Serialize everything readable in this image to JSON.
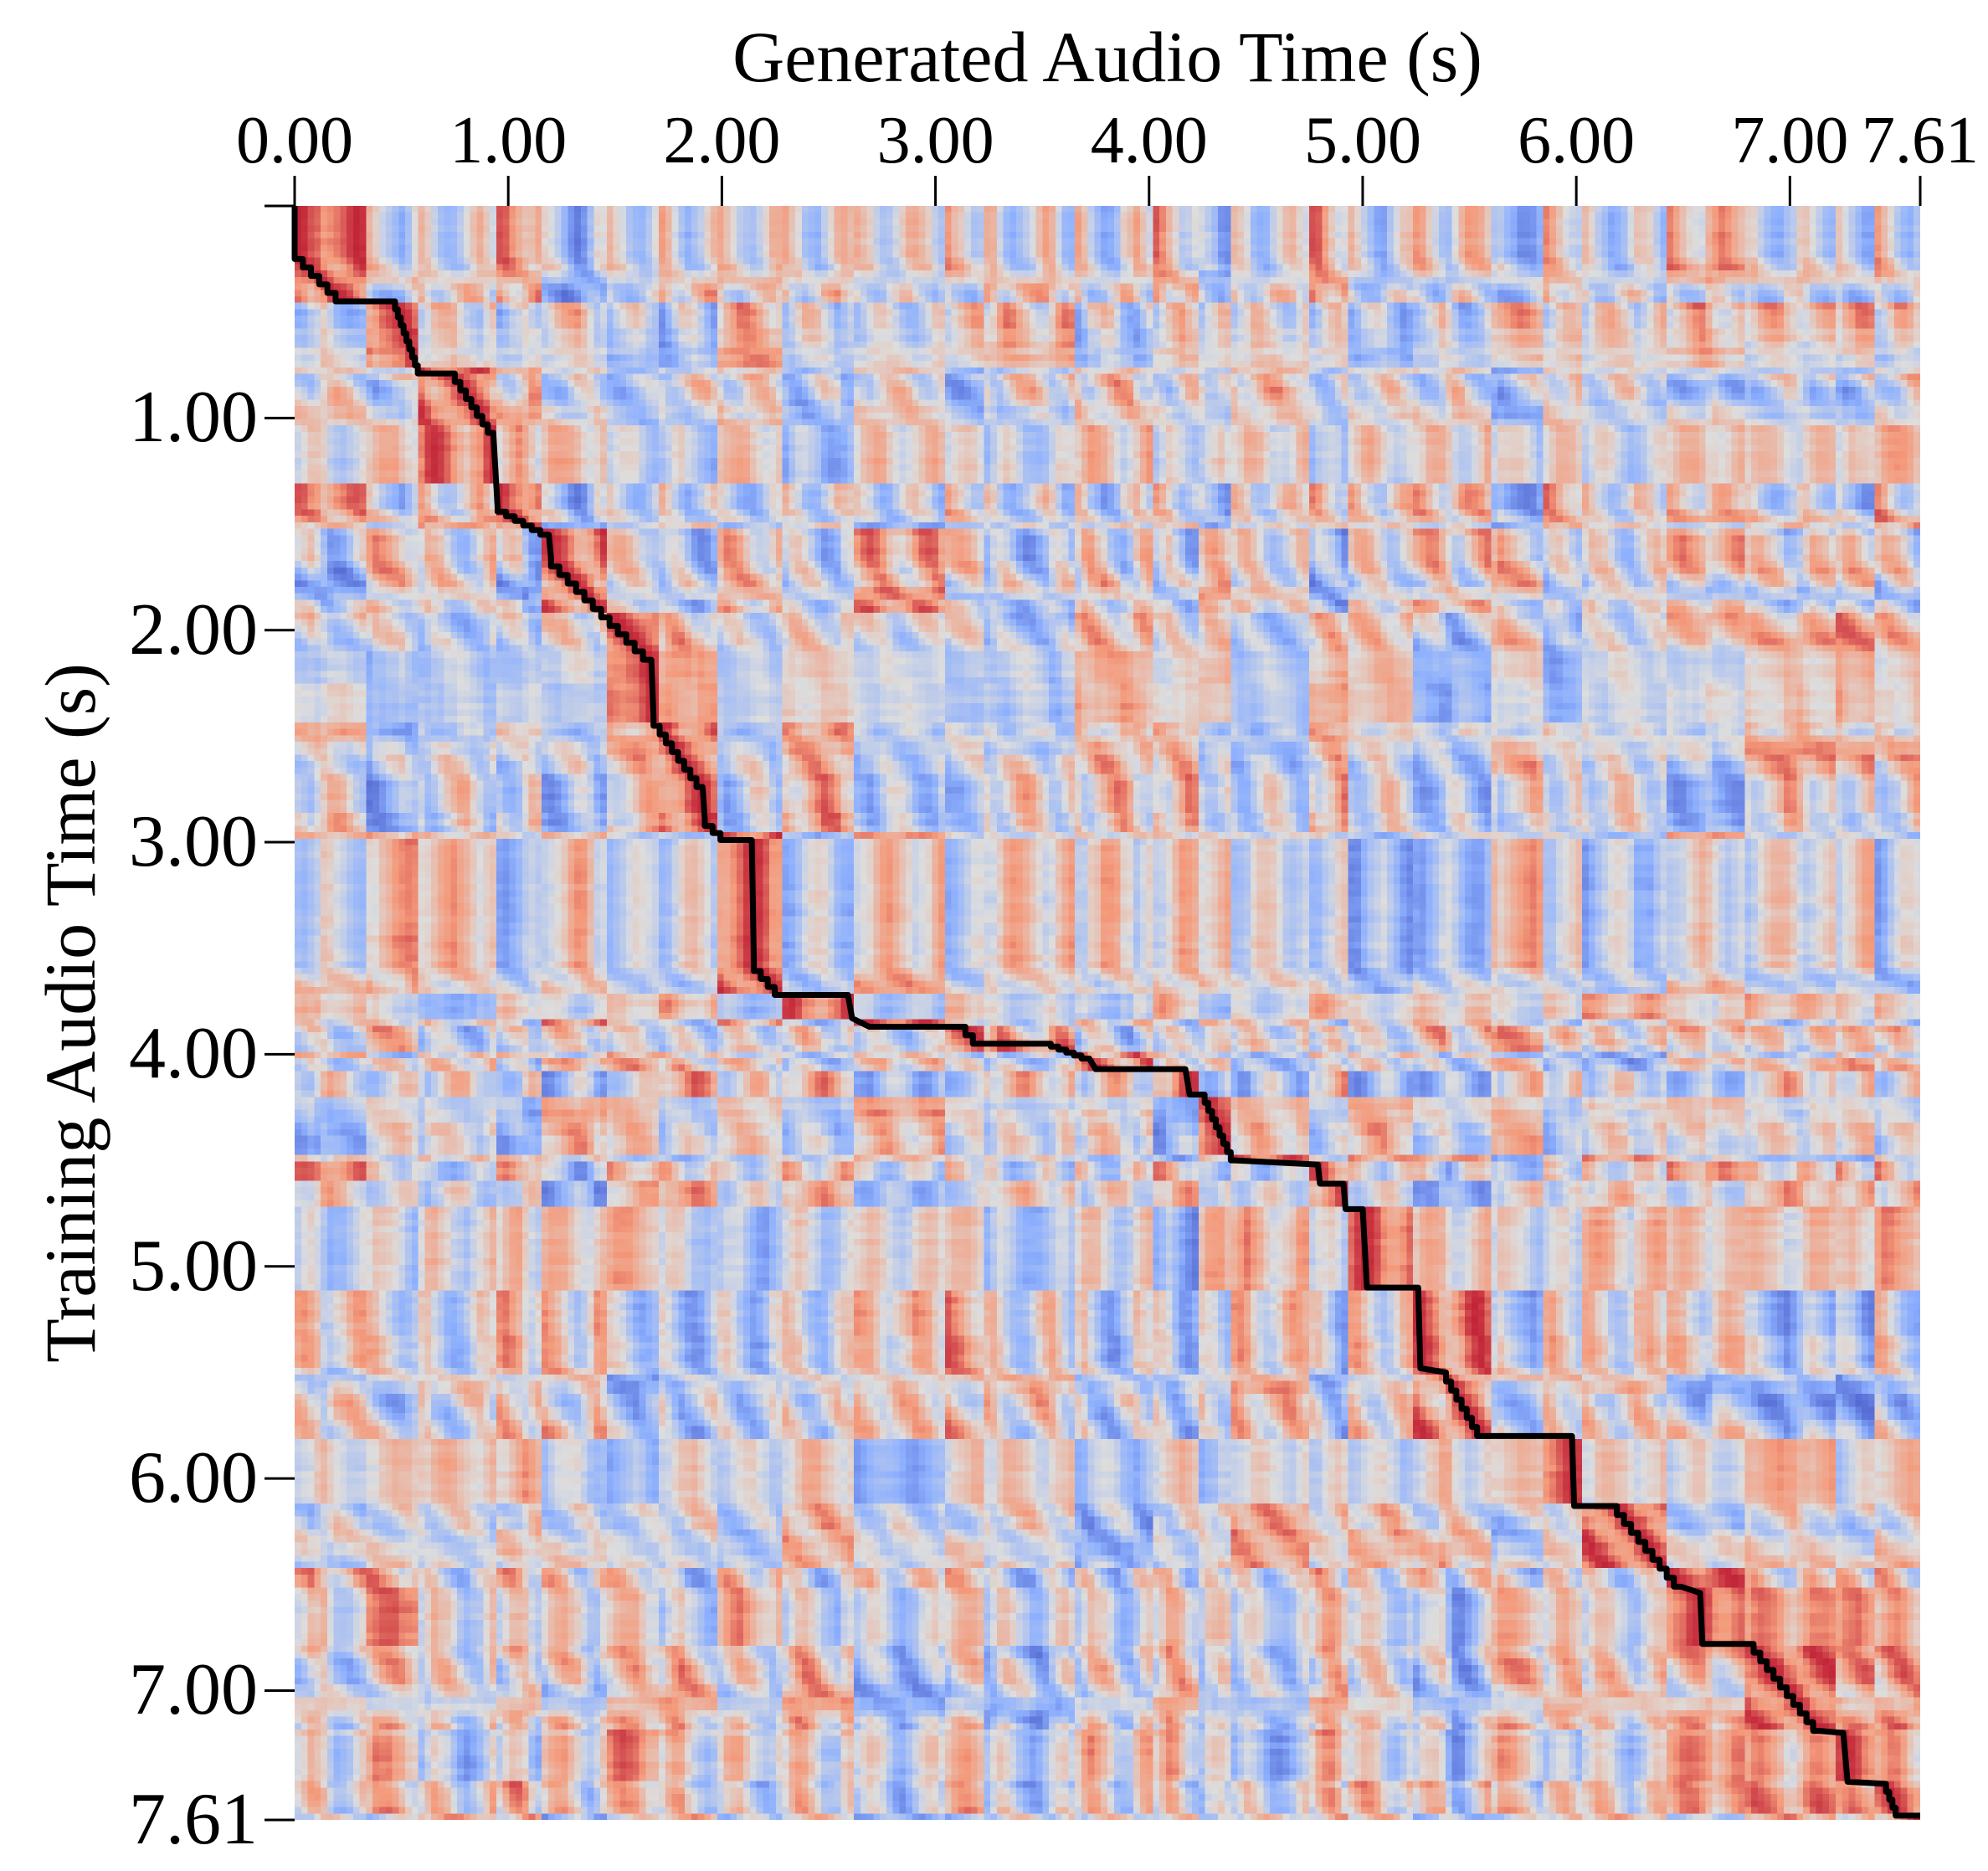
{
  "chart_data": {
    "type": "heatmap",
    "colormap": "coolwarm",
    "xlabel": "Generated Audio Time (s)",
    "ylabel": "Training Audio Time (s)",
    "xaxis_position": "top",
    "xlim": [
      0,
      7.61
    ],
    "ylim": [
      0,
      7.61
    ],
    "xticks": [
      0,
      1,
      2,
      3,
      4,
      5,
      6,
      7,
      7.61
    ],
    "xtick_labels": [
      "0.00",
      "1.00",
      "2.00",
      "3.00",
      "4.00",
      "5.00",
      "6.00",
      "7.00",
      "7.61"
    ],
    "yticks": [
      1,
      2,
      3,
      4,
      5,
      6,
      7,
      7.61
    ],
    "ytick_labels": [
      "1.00",
      "2.00",
      "3.00",
      "4.00",
      "5.00",
      "6.00",
      "7.00",
      "7.61"
    ],
    "grid": false,
    "alignment_path_color": "#000000",
    "alignment_path": [
      [
        0,
        0
      ],
      [
        0,
        0.21
      ],
      [
        0.23,
        0.45
      ],
      [
        0.47,
        0.45
      ],
      [
        0.59,
        0.79
      ],
      [
        0.75,
        0.79
      ],
      [
        0.93,
        1.07
      ],
      [
        0.95,
        1.42
      ],
      [
        1.19,
        1.55
      ],
      [
        1.2,
        1.66
      ],
      [
        1.67,
        2.14
      ],
      [
        1.68,
        2.41
      ],
      [
        1.91,
        2.74
      ],
      [
        1.92,
        2.89
      ],
      [
        2.03,
        2.99
      ],
      [
        2.14,
        2.99
      ],
      [
        2.15,
        3.57
      ],
      [
        2.28,
        3.72
      ],
      [
        2.59,
        3.72
      ],
      [
        2.61,
        3.83
      ],
      [
        2.69,
        3.87
      ],
      [
        3.14,
        3.87
      ],
      [
        3.21,
        3.95
      ],
      [
        3.54,
        3.95
      ],
      [
        3.72,
        4.02
      ],
      [
        3.75,
        4.07
      ],
      [
        4.17,
        4.07
      ],
      [
        4.19,
        4.19
      ],
      [
        4.26,
        4.19
      ],
      [
        4.4,
        4.5
      ],
      [
        4.79,
        4.52
      ],
      [
        4.8,
        4.61
      ],
      [
        4.91,
        4.61
      ],
      [
        4.92,
        4.73
      ],
      [
        5.0,
        4.73
      ],
      [
        5.02,
        5.1
      ],
      [
        5.26,
        5.1
      ],
      [
        5.27,
        5.48
      ],
      [
        5.39,
        5.5
      ],
      [
        5.56,
        5.8
      ],
      [
        5.98,
        5.8
      ],
      [
        5.99,
        6.13
      ],
      [
        6.19,
        6.13
      ],
      [
        6.49,
        6.51
      ],
      [
        6.58,
        6.54
      ],
      [
        6.59,
        6.78
      ],
      [
        6.83,
        6.78
      ],
      [
        7.14,
        7.19
      ],
      [
        7.25,
        7.2
      ],
      [
        7.27,
        7.43
      ],
      [
        7.45,
        7.44
      ],
      [
        7.51,
        7.59
      ],
      [
        7.61,
        7.59
      ]
    ]
  }
}
